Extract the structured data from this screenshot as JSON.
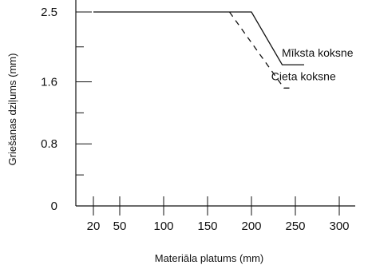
{
  "chart_data": {
    "type": "line",
    "xlabel": "Materiāla platums (mm)",
    "ylabel": "Griešanas dziļums (mm)",
    "xlim": [
      0,
      340
    ],
    "ylim": [
      0,
      2.5
    ],
    "x_ticks": [
      20,
      50,
      100,
      150,
      200,
      250,
      300
    ],
    "y_ticks": [
      0,
      0.8,
      1.6,
      2.5
    ],
    "grid": false,
    "series": [
      {
        "name": "Mīksta koksne",
        "style": "solid",
        "color": "#111111",
        "points": [
          [
            20,
            2.5
          ],
          [
            200,
            2.5
          ],
          [
            235,
            1.82
          ],
          [
            260,
            1.82
          ]
        ]
      },
      {
        "name": "Cieta koksne",
        "style": "dashed",
        "color": "#111111",
        "points": [
          [
            175,
            2.5
          ],
          [
            237,
            1.52
          ],
          [
            248,
            1.52
          ]
        ]
      }
    ]
  }
}
